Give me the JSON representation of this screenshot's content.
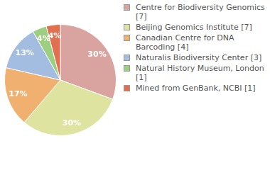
{
  "chart_data": {
    "type": "pie",
    "categories": [
      "Centre for Biodiversity Genomics [7]",
      "Beijing Genomics Institute [7]",
      "Canadian Centre for DNA Barcoding [4]",
      "Naturalis Biodiversity Center [3]",
      "Natural History Museum, London [1]",
      "Mined from GenBank, NCBI [1]"
    ],
    "values": [
      30,
      30,
      17,
      13,
      4,
      4
    ],
    "value_labels": [
      "30%",
      "30%",
      "17%",
      "13%",
      "4%",
      "4%"
    ],
    "colors": [
      "#d9a3a0",
      "#dfe3a0",
      "#f0b070",
      "#a3bde0",
      "#9ccf7f",
      "#e07050"
    ],
    "data_labels": true,
    "legend": "right"
  }
}
